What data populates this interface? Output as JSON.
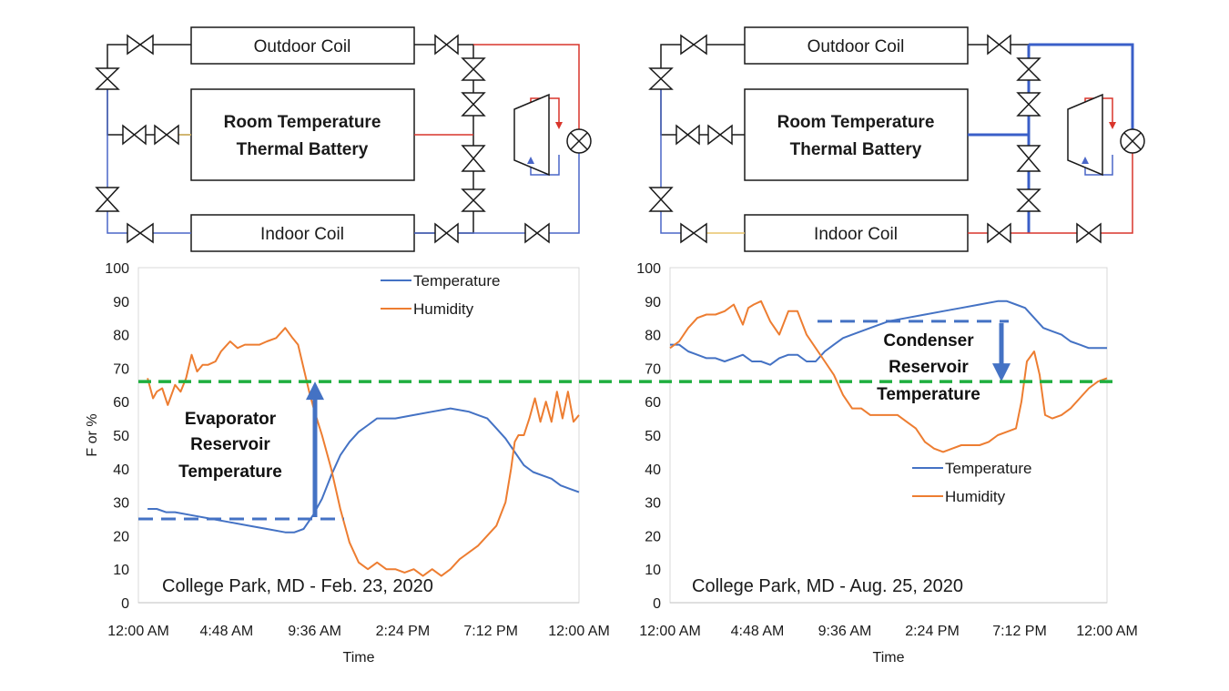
{
  "colors": {
    "temperature": "#4472C4",
    "humidity": "#ED7D31",
    "reference": "#1FAF3F",
    "marker": "#4472C4",
    "hot_line": "#D9352B",
    "cold_line": "#4A66C7",
    "frame": "#1a1a1a"
  },
  "diagrams": [
    {
      "outdoor_label": "Outdoor Coil",
      "battery_label_1": "Room Temperature",
      "battery_label_2": "Thermal Battery",
      "indoor_label": "Indoor Coil"
    },
    {
      "outdoor_label": "Outdoor Coil",
      "battery_label_1": "Room Temperature",
      "battery_label_2": "Thermal Battery",
      "indoor_label": "Indoor Coil"
    }
  ],
  "chart_data": [
    {
      "type": "line",
      "caption": "College Park, MD - Feb. 23, 2020",
      "ylabel": "F or %",
      "xlabel": "Time",
      "ylim": [
        0,
        100
      ],
      "yticks": [
        "0",
        "10",
        "20",
        "30",
        "40",
        "50",
        "60",
        "70",
        "80",
        "90",
        "100"
      ],
      "xticks": [
        "12:00 AM",
        "4:48 AM",
        "9:36 AM",
        "2:24 PM",
        "7:12 PM",
        "12:00 AM"
      ],
      "xlim_hours": [
        0,
        24
      ],
      "legend": [
        "Temperature",
        "Humidity"
      ],
      "series": [
        {
          "name": "Temperature",
          "x_hours": [
            0.5,
            1.0,
            1.5,
            2.0,
            3.0,
            4.0,
            5.0,
            6.0,
            7.0,
            8.0,
            8.5,
            9.0,
            9.5,
            10.0,
            10.5,
            11.0,
            11.5,
            12.0,
            12.5,
            13.0,
            14.0,
            15.0,
            16.0,
            17.0,
            18.0,
            18.5,
            19.0,
            19.5,
            20.0,
            20.5,
            21.0,
            21.5,
            22.0,
            22.5,
            23.0,
            23.5,
            24.0
          ],
          "values": [
            28,
            28,
            27,
            27,
            26,
            25,
            24,
            23,
            22,
            21,
            21,
            22,
            26,
            31,
            38,
            44,
            48,
            51,
            53,
            55,
            55,
            56,
            57,
            58,
            57,
            56,
            55,
            52,
            49,
            45,
            41,
            39,
            38,
            37,
            35,
            34,
            33
          ]
        },
        {
          "name": "Humidity",
          "x_hours": [
            0.5,
            0.8,
            1.0,
            1.3,
            1.6,
            2.0,
            2.3,
            2.6,
            2.9,
            3.2,
            3.5,
            3.8,
            4.2,
            4.5,
            5.0,
            5.4,
            5.8,
            6.2,
            6.6,
            7.0,
            7.5,
            8.0,
            8.4,
            8.7,
            9.0,
            9.3,
            9.6,
            10.0,
            10.5,
            11.0,
            11.5,
            12.0,
            12.5,
            13.0,
            13.5,
            14.0,
            14.5,
            15.0,
            15.5,
            16.0,
            16.5,
            17.0,
            17.5,
            18.0,
            18.5,
            19.0,
            19.5,
            20.0,
            20.3,
            20.5,
            20.7,
            21.0,
            21.3,
            21.6,
            21.9,
            22.2,
            22.5,
            22.8,
            23.1,
            23.4,
            23.7,
            24.0
          ],
          "values": [
            67,
            61,
            63,
            64,
            59,
            65,
            63,
            67,
            74,
            69,
            71,
            71,
            72,
            75,
            78,
            76,
            77,
            77,
            77,
            78,
            79,
            82,
            79,
            77,
            70,
            63,
            57,
            50,
            40,
            28,
            18,
            12,
            10,
            12,
            10,
            10,
            9,
            10,
            8,
            10,
            8,
            10,
            13,
            15,
            17,
            20,
            23,
            30,
            40,
            48,
            50,
            50,
            55,
            61,
            54,
            60,
            54,
            63,
            55,
            63,
            54,
            56
          ]
        }
      ],
      "reference_line": 66,
      "reservoir_line": 25,
      "annotation": [
        "Evaporator",
        "Reservoir",
        "Temperature"
      ]
    },
    {
      "type": "line",
      "caption": "College Park, MD - Aug. 25, 2020",
      "ylabel": "",
      "xlabel": "Time",
      "ylim": [
        0,
        100
      ],
      "yticks": [
        "0",
        "10",
        "20",
        "30",
        "40",
        "50",
        "60",
        "70",
        "80",
        "90",
        "100"
      ],
      "xticks": [
        "12:00 AM",
        "4:48 AM",
        "9:36 AM",
        "2:24 PM",
        "7:12 PM",
        "12:00 AM"
      ],
      "xlim_hours": [
        0,
        24
      ],
      "legend": [
        "Temperature",
        "Humidity"
      ],
      "series": [
        {
          "name": "Temperature",
          "x_hours": [
            0.0,
            0.5,
            1.0,
            1.5,
            2.0,
            2.5,
            3.0,
            3.5,
            4.0,
            4.5,
            5.0,
            5.5,
            6.0,
            6.5,
            7.0,
            7.5,
            8.0,
            8.5,
            9.0,
            9.5,
            10.0,
            11.0,
            12.0,
            13.0,
            14.0,
            15.0,
            16.0,
            17.0,
            18.0,
            18.5,
            19.0,
            19.5,
            20.0,
            20.5,
            21.0,
            21.5,
            22.0,
            22.5,
            23.0,
            23.5,
            24.0
          ],
          "values": [
            77,
            77,
            75,
            74,
            73,
            73,
            72,
            73,
            74,
            72,
            72,
            71,
            73,
            74,
            74,
            72,
            72,
            75,
            77,
            79,
            80,
            82,
            84,
            85,
            86,
            87,
            88,
            89,
            90,
            90,
            89,
            88,
            85,
            82,
            81,
            80,
            78,
            77,
            76,
            76,
            76
          ]
        },
        {
          "name": "Humidity",
          "x_hours": [
            0.0,
            0.5,
            1.0,
            1.5,
            2.0,
            2.5,
            3.0,
            3.5,
            4.0,
            4.3,
            4.6,
            5.0,
            5.5,
            6.0,
            6.5,
            7.0,
            7.5,
            8.0,
            8.5,
            9.0,
            9.5,
            10.0,
            10.5,
            11.0,
            11.5,
            12.0,
            12.5,
            13.0,
            13.5,
            14.0,
            14.5,
            15.0,
            15.5,
            16.0,
            16.5,
            17.0,
            17.5,
            18.0,
            18.5,
            19.0,
            19.3,
            19.6,
            20.0,
            20.3,
            20.6,
            21.0,
            21.5,
            22.0,
            22.5,
            23.0,
            23.5,
            24.0
          ],
          "values": [
            76,
            78,
            82,
            85,
            86,
            86,
            87,
            89,
            83,
            88,
            89,
            90,
            84,
            80,
            87,
            87,
            80,
            76,
            72,
            68,
            62,
            58,
            58,
            56,
            56,
            56,
            56,
            54,
            52,
            48,
            46,
            45,
            46,
            47,
            47,
            47,
            48,
            50,
            51,
            52,
            60,
            72,
            75,
            68,
            56,
            55,
            56,
            58,
            61,
            64,
            66,
            67
          ]
        }
      ],
      "reference_line": 66,
      "reservoir_line": 84,
      "annotation": [
        "Condenser",
        "Reservoir",
        "Temperature"
      ]
    }
  ]
}
